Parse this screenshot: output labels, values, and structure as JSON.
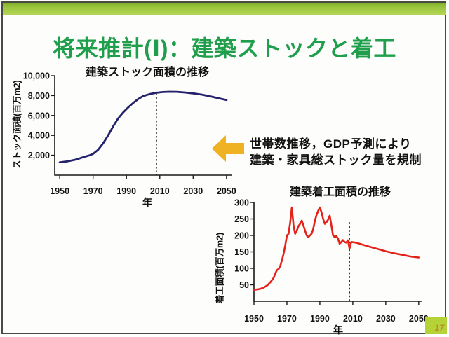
{
  "slide": {
    "title": "将来推計(Ⅰ)：建築ストックと着工",
    "page_number": "17",
    "annotation": {
      "line1": "世帯数推移，GDP予測により",
      "line2": "建築・家具総ストック量を規制"
    },
    "colors": {
      "title_green": "#1f9e4b",
      "top_bar_green": "#a9cf4b",
      "arrow_yellow": "#eeb222",
      "stock_line_blue": "#23226b",
      "starts_line_red": "#e32219",
      "page_box_green": "#b5d337"
    }
  },
  "chart_data": [
    {
      "type": "line",
      "title": "建築ストック面積の推移",
      "ylabel": "ストック面積(百万m2)",
      "xlabel": "年",
      "xlim": [
        1947,
        2053
      ],
      "ylim": [
        0,
        10000
      ],
      "grid": false,
      "legend": "none",
      "xticks": [
        {
          "v": 1950,
          "label": "1950"
        },
        {
          "v": 1970,
          "label": "1970"
        },
        {
          "v": 1990,
          "label": "1990"
        },
        {
          "v": 2010,
          "label": "2010"
        },
        {
          "v": 2030,
          "label": "2030"
        },
        {
          "v": 2050,
          "label": "2050"
        }
      ],
      "yticks": [
        {
          "v": 2000,
          "label": "2,000"
        },
        {
          "v": 4000,
          "label": "4,000"
        },
        {
          "v": 6000,
          "label": "6,000"
        },
        {
          "v": 8000,
          "label": "8,000"
        },
        {
          "v": 10000,
          "label": "10,000"
        }
      ],
      "vline": {
        "x": 2008,
        "ymax": 8200,
        "style": "dashed"
      },
      "series": [
        {
          "name": "建築ストック面積",
          "color": "#23226b",
          "width": 2.8,
          "points": [
            [
              1950,
              1280
            ],
            [
              1955,
              1400
            ],
            [
              1960,
              1580
            ],
            [
              1964,
              1800
            ],
            [
              1968,
              2000
            ],
            [
              1970,
              2150
            ],
            [
              1973,
              2550
            ],
            [
              1976,
              3200
            ],
            [
              1979,
              4000
            ],
            [
              1982,
              4900
            ],
            [
              1985,
              5700
            ],
            [
              1988,
              6300
            ],
            [
              1991,
              6800
            ],
            [
              1994,
              7250
            ],
            [
              1997,
              7650
            ],
            [
              2000,
              7950
            ],
            [
              2004,
              8150
            ],
            [
              2008,
              8280
            ],
            [
              2012,
              8350
            ],
            [
              2016,
              8380
            ],
            [
              2020,
              8370
            ],
            [
              2025,
              8310
            ],
            [
              2030,
              8220
            ],
            [
              2035,
              8100
            ],
            [
              2040,
              7930
            ],
            [
              2045,
              7740
            ],
            [
              2050,
              7550
            ]
          ]
        }
      ]
    },
    {
      "type": "line",
      "title": "建築着工面積の推移",
      "ylabel": "着工面積(百万m2)",
      "xlabel": "年",
      "xlim": [
        1950,
        2052.2
      ],
      "ylim": [
        0,
        300
      ],
      "grid": false,
      "legend": "none",
      "xticks": [
        {
          "v": 1950,
          "label": "1950"
        },
        {
          "v": 1970,
          "label": "1970"
        },
        {
          "v": 1990,
          "label": "1990"
        },
        {
          "v": 2010,
          "label": "2010"
        },
        {
          "v": 2030,
          "label": "2030"
        },
        {
          "v": 2050,
          "label": "2050"
        }
      ],
      "yticks": [
        {
          "v": 50,
          "label": "50"
        },
        {
          "v": 100,
          "label": "100"
        },
        {
          "v": 150,
          "label": "150"
        },
        {
          "v": 200,
          "label": "200"
        },
        {
          "v": 250,
          "label": "250"
        },
        {
          "v": 300,
          "label": "300"
        }
      ],
      "vline": {
        "x": 2008,
        "ymax": 240,
        "style": "dashed"
      },
      "series": [
        {
          "name": "建築着工面積",
          "color": "#e32219",
          "width": 2.6,
          "points": [
            [
              1950,
              35
            ],
            [
              1952,
              36
            ],
            [
              1954,
              38
            ],
            [
              1956,
              42
            ],
            [
              1958,
              48
            ],
            [
              1960,
              58
            ],
            [
              1962,
              72
            ],
            [
              1963,
              85
            ],
            [
              1964,
              95
            ],
            [
              1965,
              98
            ],
            [
              1966,
              108
            ],
            [
              1967,
              125
            ],
            [
              1968,
              145
            ],
            [
              1969,
              170
            ],
            [
              1970,
              200
            ],
            [
              1971,
              205
            ],
            [
              1972,
              240
            ],
            [
              1973,
              285
            ],
            [
              1974,
              230
            ],
            [
              1975,
              205
            ],
            [
              1976,
              215
            ],
            [
              1977,
              228
            ],
            [
              1978,
              235
            ],
            [
              1979,
              245
            ],
            [
              1980,
              230
            ],
            [
              1981,
              215
            ],
            [
              1982,
              200
            ],
            [
              1983,
              195
            ],
            [
              1984,
              200
            ],
            [
              1985,
              205
            ],
            [
              1986,
              220
            ],
            [
              1987,
              245
            ],
            [
              1988,
              262
            ],
            [
              1989,
              275
            ],
            [
              1990,
              285
            ],
            [
              1991,
              270
            ],
            [
              1992,
              250
            ],
            [
              1993,
              235
            ],
            [
              1994,
              240
            ],
            [
              1995,
              248
            ],
            [
              1996,
              260
            ],
            [
              1997,
              230
            ],
            [
              1998,
              200
            ],
            [
              1999,
              195
            ],
            [
              2000,
              198
            ],
            [
              2001,
              190
            ],
            [
              2002,
              175
            ],
            [
              2003,
              180
            ],
            [
              2004,
              186
            ],
            [
              2005,
              180
            ],
            [
              2006,
              178
            ],
            [
              2007,
              185
            ],
            [
              2008,
              160
            ],
            [
              2009,
              180
            ],
            [
              2012,
              178
            ],
            [
              2016,
              172
            ],
            [
              2020,
              166
            ],
            [
              2025,
              159
            ],
            [
              2030,
              152
            ],
            [
              2035,
              146
            ],
            [
              2040,
              141
            ],
            [
              2045,
              136
            ],
            [
              2050,
              133
            ]
          ]
        }
      ]
    }
  ]
}
